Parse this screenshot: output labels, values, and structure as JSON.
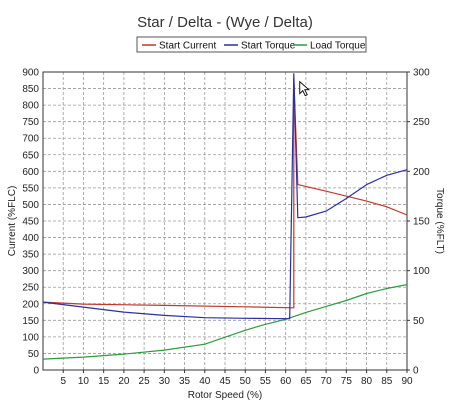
{
  "chart_data": {
    "type": "line",
    "title": "Star / Delta - (Wye / Delta)",
    "xlabel": "Rotor Speed (%)",
    "ylabel_left": "Current (%FLC)",
    "ylabel_right": "Torque (%FLT)",
    "x_range": [
      0,
      90
    ],
    "y_left_range": [
      0,
      900
    ],
    "y_right_range": [
      0,
      300
    ],
    "x_ticks": [
      5,
      10,
      15,
      20,
      25,
      30,
      35,
      40,
      45,
      50,
      55,
      60,
      65,
      70,
      75,
      80,
      85,
      90
    ],
    "y_left_ticks": [
      0,
      50,
      100,
      150,
      200,
      250,
      300,
      350,
      400,
      450,
      500,
      550,
      600,
      650,
      700,
      750,
      800,
      850,
      900
    ],
    "y_right_ticks": [
      0,
      50,
      100,
      150,
      200,
      250,
      300
    ],
    "grid": true,
    "legend_position": "top",
    "series": [
      {
        "name": "Start Current",
        "color": "#c0392b",
        "axis": "left",
        "points": [
          [
            0,
            205
          ],
          [
            10,
            199
          ],
          [
            30,
            195
          ],
          [
            50,
            191
          ],
          [
            62,
            188
          ],
          [
            62,
            880
          ],
          [
            63,
            560
          ],
          [
            70,
            540
          ],
          [
            80,
            510
          ],
          [
            85,
            493
          ],
          [
            90,
            468
          ]
        ]
      },
      {
        "name": "Start Torque",
        "color": "#2e2e9e",
        "axis": "left",
        "points": [
          [
            0,
            205
          ],
          [
            10,
            190
          ],
          [
            20,
            175
          ],
          [
            30,
            165
          ],
          [
            40,
            158
          ],
          [
            50,
            156
          ],
          [
            61,
            155
          ],
          [
            62,
            895
          ],
          [
            63,
            460
          ],
          [
            65,
            462
          ],
          [
            70,
            480
          ],
          [
            75,
            518
          ],
          [
            80,
            560
          ],
          [
            85,
            588
          ],
          [
            90,
            605
          ]
        ]
      },
      {
        "name": "Load Torque",
        "color": "#2a9d3a",
        "axis": "right",
        "points": [
          [
            0,
            11
          ],
          [
            10,
            13
          ],
          [
            20,
            16
          ],
          [
            30,
            20
          ],
          [
            40,
            26
          ],
          [
            45,
            33
          ],
          [
            50,
            40
          ],
          [
            55,
            46
          ],
          [
            60,
            51
          ],
          [
            65,
            58
          ],
          [
            70,
            64
          ],
          [
            75,
            70
          ],
          [
            80,
            77
          ],
          [
            85,
            82
          ],
          [
            90,
            86
          ]
        ]
      }
    ]
  }
}
